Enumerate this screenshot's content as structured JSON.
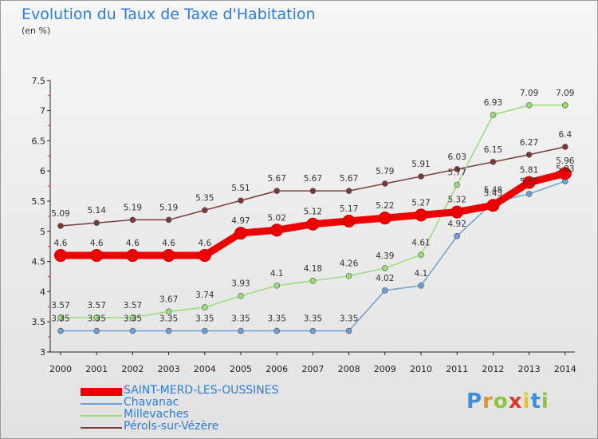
{
  "chart_data": {
    "type": "line",
    "title": "Evolution du Taux de Taxe d'Habitation",
    "ylabel": "(en %)",
    "xlabel": "",
    "ylim": [
      3,
      7.5
    ],
    "yticks": [
      "3",
      "3.5",
      "4",
      "4.5",
      "5",
      "5.5",
      "6",
      "6.5",
      "7",
      "7.5"
    ],
    "categories": [
      "2000",
      "2001",
      "2002",
      "2003",
      "2004",
      "2005",
      "2006",
      "2007",
      "2008",
      "2009",
      "2010",
      "2011",
      "2012",
      "2013",
      "2014"
    ],
    "grid": false,
    "legend": "bottom-left",
    "series": [
      {
        "name": "SAINT-MERD-LES-OUSSINES",
        "color": "#ee0000",
        "values": [
          4.6,
          4.6,
          4.6,
          4.6,
          4.6,
          4.97,
          5.02,
          5.12,
          5.17,
          5.22,
          5.27,
          5.32,
          5.43,
          5.81,
          5.96
        ]
      },
      {
        "name": "Chavanac",
        "color": "#6c9fd4",
        "values": [
          3.35,
          3.35,
          3.35,
          3.35,
          3.35,
          3.35,
          3.35,
          3.35,
          3.35,
          4.02,
          4.1,
          4.92,
          5.48,
          5.62,
          5.83
        ]
      },
      {
        "name": "Millevaches",
        "color": "#99dd77",
        "values": [
          3.57,
          3.57,
          3.57,
          3.67,
          3.74,
          3.93,
          4.1,
          4.18,
          4.26,
          4.39,
          4.61,
          5.77,
          6.93,
          7.09,
          7.09
        ]
      },
      {
        "name": "Pérols-sur-Vézère",
        "color": "#7a3a3a",
        "values": [
          5.09,
          5.14,
          5.19,
          5.19,
          5.35,
          5.51,
          5.67,
          5.67,
          5.67,
          5.79,
          5.91,
          6.03,
          6.15,
          6.27,
          6.4
        ]
      }
    ],
    "value_labels": [
      [
        "4.6",
        "4.6",
        "4.6",
        "4.6",
        "4.6",
        "4.97",
        "5.02",
        "5.12",
        "5.17",
        "5.22",
        "5.27",
        "5.32",
        "5.43",
        "5.81",
        "5.96"
      ],
      [
        "3.35",
        "3.35",
        "3.35",
        "3.35",
        "3.35",
        "3.35",
        "3.35",
        "3.35",
        "3.35",
        "4.02",
        "4.1",
        "4.92",
        "5.48",
        "5.62",
        "5.83"
      ],
      [
        "3.57",
        "3.57",
        "3.57",
        "3.67",
        "3.74",
        "3.93",
        "4.1",
        "4.18",
        "4.26",
        "4.39",
        "4.61",
        "5.77",
        "6.93",
        "7.09",
        "7.09"
      ],
      [
        "5.09",
        "5.14",
        "5.19",
        "5.19",
        "5.35",
        "5.51",
        "5.67",
        "5.67",
        "5.67",
        "5.79",
        "5.91",
        "6.03",
        "6.15",
        "6.27",
        "6.4"
      ]
    ]
  },
  "logo": {
    "text": "Proxiti",
    "colors": [
      "#3a8fd8",
      "#e8902a",
      "#8fc43c",
      "#d8392a",
      "#e8c32a",
      "#3a8fd8",
      "#8fc43c"
    ]
  }
}
